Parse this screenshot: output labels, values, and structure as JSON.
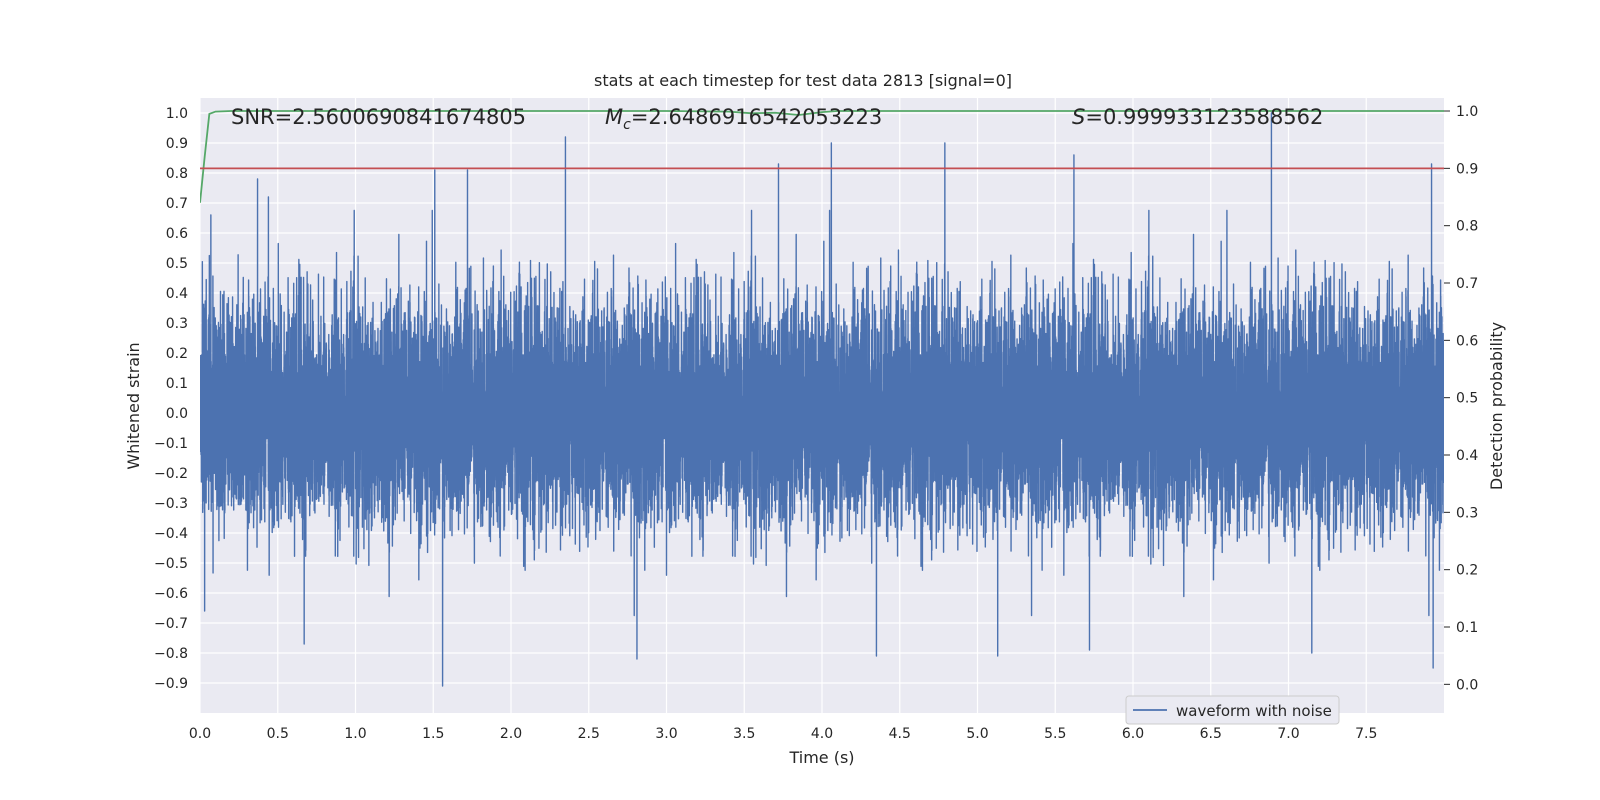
{
  "chart_data": {
    "type": "line",
    "title": "stats at each timestep for test data 2813 [signal=0]",
    "xlabel": "Time (s)",
    "ylabel_left": "Whitened strain",
    "ylabel_right": "Detection probability",
    "xlim": [
      0.0,
      8.0
    ],
    "ylim_left": [
      -1.0,
      1.05
    ],
    "ylim_right": [
      -0.05,
      1.0227
    ],
    "xticks": [
      "0.0",
      "0.5",
      "1.0",
      "1.5",
      "2.0",
      "2.5",
      "3.0",
      "3.5",
      "4.0",
      "4.5",
      "5.0",
      "5.5",
      "6.0",
      "6.5",
      "7.0",
      "7.5"
    ],
    "yticks_left": [
      "−0.9",
      "−0.8",
      "−0.7",
      "−0.6",
      "−0.5",
      "−0.4",
      "−0.3",
      "−0.2",
      "−0.1",
      "0.0",
      "0.1",
      "0.2",
      "0.3",
      "0.4",
      "0.5",
      "0.6",
      "0.7",
      "0.8",
      "0.9",
      "1.0"
    ],
    "yticks_right": [
      "0.0",
      "0.1",
      "0.2",
      "0.3",
      "0.4",
      "0.5",
      "0.6",
      "0.7",
      "0.8",
      "0.9",
      "1.0"
    ],
    "annotations": {
      "snr": "SNR=2.5600690841674805",
      "mc_symbol": "M",
      "mc_sub": "c",
      "mc_value": "=2.6486916542053223",
      "s_symbol": "S",
      "s_value": "=0.999933123588562"
    },
    "legend": {
      "label": "waveform with noise",
      "placement": "lower-right"
    },
    "grid": true,
    "colors": {
      "waveform": "#4c72b0",
      "probability": "#55a868",
      "threshold": "#c44e52",
      "background": "#eaeaf2",
      "grid": "#ffffff"
    },
    "series": [
      {
        "name": "waveform with noise",
        "axis": "left",
        "sample_rate_hz": 2048,
        "envelope_typical": [
          -0.45,
          0.45
        ],
        "peaks": [
          {
            "x": 0.07,
            "y": 0.66
          },
          {
            "x": 0.37,
            "y": 0.78
          },
          {
            "x": 0.44,
            "y": 0.72
          },
          {
            "x": 1.51,
            "y": 0.81
          },
          {
            "x": 1.72,
            "y": 0.81
          },
          {
            "x": 2.35,
            "y": 0.92
          },
          {
            "x": 3.72,
            "y": 0.83
          },
          {
            "x": 4.06,
            "y": 0.9
          },
          {
            "x": 4.79,
            "y": 0.9
          },
          {
            "x": 5.62,
            "y": 0.86
          },
          {
            "x": 6.89,
            "y": 1.0
          },
          {
            "x": 7.92,
            "y": 0.83
          }
        ],
        "troughs": [
          {
            "x": 0.03,
            "y": -0.66
          },
          {
            "x": 0.67,
            "y": -0.77
          },
          {
            "x": 1.56,
            "y": -0.91
          },
          {
            "x": 2.81,
            "y": -0.82
          },
          {
            "x": 4.35,
            "y": -0.81
          },
          {
            "x": 5.13,
            "y": -0.81
          },
          {
            "x": 5.72,
            "y": -0.79
          },
          {
            "x": 7.15,
            "y": -0.8
          },
          {
            "x": 7.93,
            "y": -0.85
          }
        ]
      },
      {
        "name": "",
        "axis": "right",
        "x": [
          0.0,
          0.03,
          0.06,
          0.1,
          0.2,
          1.0,
          2.0,
          3.0,
          3.4,
          3.55,
          3.7,
          3.85,
          4.0,
          4.1,
          5.0,
          6.0,
          7.0,
          8.0
        ],
        "y": [
          0.84,
          0.92,
          0.995,
          0.999,
          1.0,
          1.0,
          1.0,
          1.0,
          0.999,
          0.996,
          0.997,
          0.993,
          0.998,
          1.0,
          1.0,
          1.0,
          1.0,
          1.0
        ]
      },
      {
        "name": "",
        "axis": "right",
        "x": [
          0.0,
          8.0
        ],
        "y": [
          0.9,
          0.9
        ]
      }
    ]
  }
}
